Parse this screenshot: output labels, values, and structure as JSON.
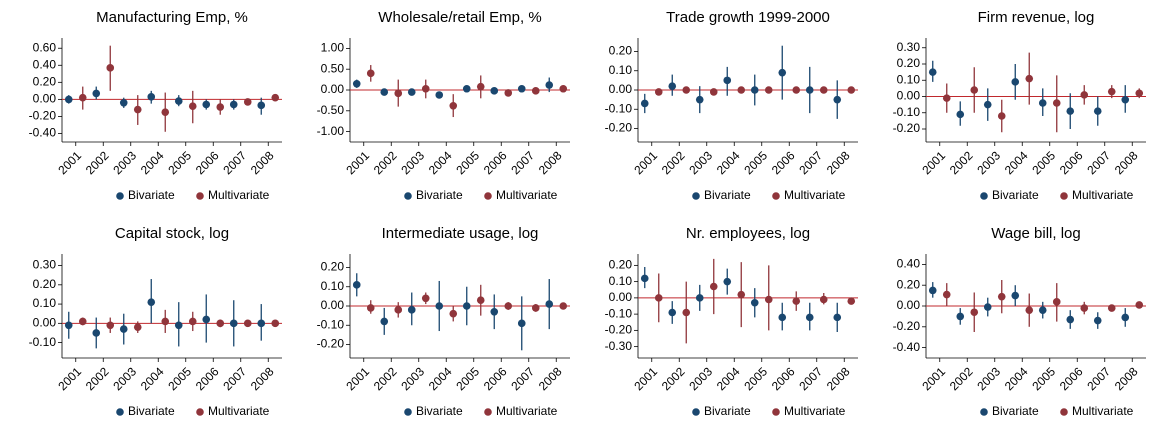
{
  "chart_data": [
    {
      "type": "errorbar",
      "title": "Manufacturing Emp, %",
      "categories": [
        "2001",
        "2002",
        "2003",
        "2004",
        "2005",
        "2006",
        "2007",
        "2008"
      ],
      "ylim": [
        -0.5,
        0.72
      ],
      "yticks": [
        {
          "value": -0.4,
          "label": "-0.40"
        },
        {
          "value": -0.2,
          "label": "-0.20"
        },
        {
          "value": 0,
          "label": "0.00"
        },
        {
          "value": 0.2,
          "label": "0.20"
        },
        {
          "value": 0.4,
          "label": "0.40"
        },
        {
          "value": 0.6,
          "label": "0.60"
        }
      ],
      "refline": 0,
      "refline_color": "#c0282d",
      "series": [
        {
          "name": "Bivariate",
          "color": "#1a476f",
          "values": [
            0.0,
            0.07,
            -0.04,
            0.03,
            -0.02,
            -0.06,
            -0.06,
            -0.07
          ],
          "low": [
            -0.05,
            0.0,
            -0.1,
            -0.05,
            -0.08,
            -0.12,
            -0.12,
            -0.18
          ],
          "high": [
            0.05,
            0.15,
            0.02,
            0.1,
            0.05,
            0.0,
            0.0,
            0.02
          ]
        },
        {
          "name": "Multivariate",
          "color": "#90353b",
          "values": [
            0.02,
            0.37,
            -0.12,
            -0.15,
            -0.08,
            -0.09,
            -0.03,
            0.02
          ],
          "low": [
            -0.12,
            0.1,
            -0.3,
            -0.38,
            -0.28,
            -0.18,
            -0.07,
            -0.01
          ],
          "high": [
            0.15,
            0.63,
            0.05,
            0.08,
            0.1,
            0.0,
            0.01,
            0.05
          ]
        }
      ]
    },
    {
      "type": "errorbar",
      "title": "Wholesale/retail Emp, %",
      "categories": [
        "2001",
        "2002",
        "2003",
        "2004",
        "2005",
        "2006",
        "2007",
        "2008"
      ],
      "ylim": [
        -1.25,
        1.25
      ],
      "yticks": [
        {
          "value": -1,
          "label": "-1.00"
        },
        {
          "value": -0.5,
          "label": "-0.50"
        },
        {
          "value": 0,
          "label": "0.00"
        },
        {
          "value": 0.5,
          "label": "0.50"
        },
        {
          "value": 1,
          "label": "1.00"
        }
      ],
      "refline": 0,
      "refline_color": "#c0282d",
      "series": [
        {
          "name": "Bivariate",
          "color": "#1a476f",
          "values": [
            0.15,
            -0.05,
            -0.05,
            -0.12,
            0.03,
            -0.02,
            0.03,
            0.12
          ],
          "low": [
            0.05,
            -0.12,
            -0.12,
            -0.2,
            -0.05,
            -0.1,
            -0.05,
            -0.05
          ],
          "high": [
            0.25,
            0.02,
            0.02,
            -0.05,
            0.1,
            0.05,
            0.1,
            0.3
          ]
        },
        {
          "name": "Multivariate",
          "color": "#90353b",
          "values": [
            0.4,
            -0.08,
            0.03,
            -0.38,
            0.08,
            -0.07,
            -0.02,
            0.03
          ],
          "low": [
            0.2,
            -0.4,
            -0.2,
            -0.65,
            -0.2,
            -0.15,
            -0.05,
            -0.03
          ],
          "high": [
            0.6,
            0.25,
            0.25,
            -0.1,
            0.35,
            0.0,
            0.02,
            0.08
          ]
        }
      ]
    },
    {
      "type": "errorbar",
      "title": "Trade growth 1999-2000",
      "categories": [
        "2001",
        "2002",
        "2003",
        "2004",
        "2005",
        "2006",
        "2007",
        "2008"
      ],
      "ylim": [
        -0.27,
        0.27
      ],
      "yticks": [
        {
          "value": -0.2,
          "label": "-0.20"
        },
        {
          "value": -0.1,
          "label": "-0.10"
        },
        {
          "value": 0,
          "label": "0.00"
        },
        {
          "value": 0.1,
          "label": "0.10"
        },
        {
          "value": 0.2,
          "label": "0.20"
        }
      ],
      "refline": 0,
      "refline_color": "#c0282d",
      "series": [
        {
          "name": "Bivariate",
          "color": "#1a476f",
          "values": [
            -0.07,
            0.02,
            -0.05,
            0.05,
            0.0,
            0.09,
            0.0,
            -0.05
          ],
          "low": [
            -0.12,
            -0.03,
            -0.12,
            -0.03,
            -0.08,
            -0.05,
            -0.12,
            -0.15
          ],
          "high": [
            -0.02,
            0.08,
            0.02,
            0.12,
            0.08,
            0.23,
            0.12,
            0.05
          ]
        },
        {
          "name": "Multivariate",
          "color": "#90353b",
          "values": [
            -0.01,
            0.0,
            -0.01,
            0.0,
            0.0,
            0.0,
            0.0,
            0.0
          ],
          "low": [
            -0.02,
            -0.01,
            -0.02,
            -0.01,
            -0.01,
            -0.01,
            -0.01,
            -0.01
          ],
          "high": [
            0.0,
            0.01,
            0.0,
            0.01,
            0.01,
            0.01,
            0.01,
            0.01
          ]
        }
      ]
    },
    {
      "type": "errorbar",
      "title": "Firm revenue, log",
      "categories": [
        "2001",
        "2002",
        "2003",
        "2004",
        "2005",
        "2006",
        "2007",
        "2008"
      ],
      "ylim": [
        -0.28,
        0.36
      ],
      "yticks": [
        {
          "value": -0.2,
          "label": "-0.20"
        },
        {
          "value": -0.1,
          "label": "-0.10"
        },
        {
          "value": 0,
          "label": "0.00"
        },
        {
          "value": 0.1,
          "label": "0.10"
        },
        {
          "value": 0.2,
          "label": "0.20"
        },
        {
          "value": 0.3,
          "label": "0.30"
        }
      ],
      "refline": 0,
      "refline_color": "#c0282d",
      "series": [
        {
          "name": "Bivariate",
          "color": "#1a476f",
          "values": [
            0.15,
            -0.11,
            -0.05,
            0.09,
            -0.04,
            -0.09,
            -0.09,
            -0.02
          ],
          "low": [
            0.09,
            -0.18,
            -0.15,
            -0.02,
            -0.12,
            -0.2,
            -0.18,
            -0.1
          ],
          "high": [
            0.22,
            -0.03,
            0.05,
            0.2,
            0.05,
            0.02,
            0.0,
            0.07
          ]
        },
        {
          "name": "Multivariate",
          "color": "#90353b",
          "values": [
            -0.01,
            0.04,
            -0.12,
            0.11,
            -0.04,
            0.01,
            0.03,
            0.02
          ],
          "low": [
            -0.1,
            -0.1,
            -0.22,
            -0.05,
            -0.22,
            -0.05,
            -0.01,
            -0.01
          ],
          "high": [
            0.08,
            0.18,
            -0.02,
            0.27,
            0.13,
            0.07,
            0.07,
            0.05
          ]
        }
      ]
    },
    {
      "type": "errorbar",
      "title": "Capital stock, log",
      "categories": [
        "2001",
        "2002",
        "2003",
        "2004",
        "2005",
        "2006",
        "2007",
        "2008"
      ],
      "ylim": [
        -0.18,
        0.36
      ],
      "yticks": [
        {
          "value": -0.1,
          "label": "-0.10"
        },
        {
          "value": 0,
          "label": "0.00"
        },
        {
          "value": 0.1,
          "label": "0.10"
        },
        {
          "value": 0.2,
          "label": "0.20"
        },
        {
          "value": 0.3,
          "label": "0.30"
        }
      ],
      "refline": 0,
      "refline_color": "#c0282d",
      "series": [
        {
          "name": "Bivariate",
          "color": "#1a476f",
          "values": [
            -0.01,
            -0.05,
            -0.03,
            0.11,
            -0.01,
            0.02,
            0.0,
            0.0
          ],
          "low": [
            -0.08,
            -0.13,
            -0.11,
            0.0,
            -0.12,
            -0.1,
            -0.12,
            -0.09
          ],
          "high": [
            0.06,
            0.03,
            0.05,
            0.23,
            0.11,
            0.15,
            0.12,
            0.1
          ]
        },
        {
          "name": "Multivariate",
          "color": "#90353b",
          "values": [
            0.01,
            -0.01,
            -0.02,
            0.01,
            0.01,
            0.0,
            0.0,
            0.0
          ],
          "low": [
            -0.01,
            -0.05,
            -0.05,
            -0.05,
            -0.04,
            -0.02,
            -0.01,
            -0.01
          ],
          "high": [
            0.03,
            0.03,
            0.01,
            0.07,
            0.06,
            0.02,
            0.01,
            0.01
          ]
        }
      ]
    },
    {
      "type": "errorbar",
      "title": "Intermediate usage, log",
      "categories": [
        "2001",
        "2002",
        "2003",
        "2004",
        "2005",
        "2006",
        "2007",
        "2008"
      ],
      "ylim": [
        -0.27,
        0.27
      ],
      "yticks": [
        {
          "value": -0.2,
          "label": "-0.20"
        },
        {
          "value": -0.1,
          "label": "-0.10"
        },
        {
          "value": 0,
          "label": "0.00"
        },
        {
          "value": 0.1,
          "label": "0.10"
        },
        {
          "value": 0.2,
          "label": "0.20"
        }
      ],
      "refline": 0,
      "refline_color": "#c0282d",
      "series": [
        {
          "name": "Bivariate",
          "color": "#1a476f",
          "values": [
            0.11,
            -0.08,
            -0.02,
            0.0,
            0.0,
            -0.03,
            -0.09,
            0.01
          ],
          "low": [
            0.05,
            -0.15,
            -0.1,
            -0.13,
            -0.1,
            -0.12,
            -0.23,
            -0.12
          ],
          "high": [
            0.17,
            -0.01,
            0.07,
            0.13,
            0.1,
            0.06,
            0.05,
            0.14
          ]
        },
        {
          "name": "Multivariate",
          "color": "#90353b",
          "values": [
            -0.01,
            -0.02,
            0.04,
            -0.04,
            0.03,
            0.0,
            -0.01,
            0.0
          ],
          "low": [
            -0.04,
            -0.06,
            0.01,
            -0.08,
            -0.05,
            -0.02,
            -0.03,
            -0.01
          ],
          "high": [
            0.03,
            0.02,
            0.07,
            0.0,
            0.11,
            0.02,
            0.01,
            0.01
          ]
        }
      ]
    },
    {
      "type": "errorbar",
      "title": "Nr. employees, log",
      "categories": [
        "2001",
        "2002",
        "2003",
        "2004",
        "2005",
        "2006",
        "2007",
        "2008"
      ],
      "ylim": [
        -0.37,
        0.27
      ],
      "yticks": [
        {
          "value": -0.3,
          "label": "-0.30"
        },
        {
          "value": -0.2,
          "label": "-0.20"
        },
        {
          "value": -0.1,
          "label": "-0.10"
        },
        {
          "value": 0,
          "label": "0.00"
        },
        {
          "value": 0.1,
          "label": "0.10"
        },
        {
          "value": 0.2,
          "label": "0.20"
        }
      ],
      "refline": 0,
      "refline_color": "#c0282d",
      "series": [
        {
          "name": "Bivariate",
          "color": "#1a476f",
          "values": [
            0.12,
            -0.09,
            0.0,
            0.1,
            -0.03,
            -0.12,
            -0.12,
            -0.12
          ],
          "low": [
            0.06,
            -0.16,
            -0.08,
            0.02,
            -0.12,
            -0.2,
            -0.2,
            -0.21
          ],
          "high": [
            0.19,
            -0.02,
            0.08,
            0.18,
            0.06,
            -0.03,
            -0.03,
            -0.03
          ]
        },
        {
          "name": "Multivariate",
          "color": "#90353b",
          "values": [
            0.0,
            -0.09,
            0.07,
            0.02,
            -0.01,
            -0.02,
            -0.01,
            -0.02
          ],
          "low": [
            -0.15,
            -0.28,
            -0.1,
            -0.18,
            -0.2,
            -0.08,
            -0.04,
            -0.04
          ],
          "high": [
            0.15,
            0.1,
            0.24,
            0.22,
            0.2,
            0.04,
            0.03,
            0.0
          ]
        }
      ]
    },
    {
      "type": "errorbar",
      "title": "Wage bill, log",
      "categories": [
        "2001",
        "2002",
        "2003",
        "2004",
        "2005",
        "2006",
        "2007",
        "2008"
      ],
      "ylim": [
        -0.5,
        0.5
      ],
      "yticks": [
        {
          "value": -0.4,
          "label": "-0.40"
        },
        {
          "value": -0.2,
          "label": "-0.20"
        },
        {
          "value": 0,
          "label": "0.00"
        },
        {
          "value": 0.2,
          "label": "0.20"
        },
        {
          "value": 0.4,
          "label": "0.40"
        }
      ],
      "refline": 0,
      "refline_color": "#c0282d",
      "series": [
        {
          "name": "Bivariate",
          "color": "#1a476f",
          "values": [
            0.15,
            -0.1,
            -0.01,
            0.1,
            -0.04,
            -0.13,
            -0.14,
            -0.11
          ],
          "low": [
            0.08,
            -0.18,
            -0.1,
            0.0,
            -0.12,
            -0.22,
            -0.22,
            -0.2
          ],
          "high": [
            0.23,
            -0.02,
            0.08,
            0.2,
            0.04,
            -0.04,
            -0.06,
            -0.02
          ]
        },
        {
          "name": "Multivariate",
          "color": "#90353b",
          "values": [
            0.11,
            -0.06,
            0.09,
            -0.04,
            0.04,
            -0.02,
            -0.02,
            0.01
          ],
          "low": [
            0.0,
            -0.25,
            -0.07,
            -0.2,
            -0.15,
            -0.08,
            -0.05,
            -0.01
          ],
          "high": [
            0.22,
            0.13,
            0.25,
            0.12,
            0.22,
            0.04,
            0.01,
            0.03
          ]
        }
      ]
    }
  ]
}
